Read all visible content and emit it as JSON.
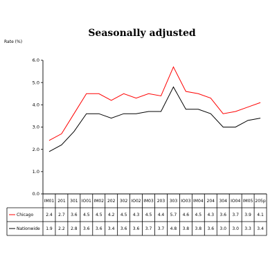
{
  "chart_data": {
    "type": "line",
    "title": "Seasonally adjusted",
    "ylabel": "Rate (%)",
    "xlabel": "",
    "ylim": [
      0.0,
      6.0
    ],
    "y_ticks": [
      "0.0",
      "1.0",
      "2.0",
      "3.0",
      "4.0",
      "5.0",
      "6.0"
    ],
    "grid": false,
    "legend": "table-below",
    "categories": [
      "IM01",
      "201",
      "301",
      "IO01",
      "IM02",
      "202",
      "302",
      "IO02",
      "IM03",
      "203",
      "303",
      "IO03",
      "IM04",
      "204",
      "304",
      "IO04",
      "IM05",
      "205p"
    ],
    "series": [
      {
        "name": "Chicago",
        "color": "#ff0000",
        "values": [
          2.4,
          2.7,
          3.6,
          4.5,
          4.5,
          4.2,
          4.5,
          4.3,
          4.5,
          4.4,
          5.7,
          4.6,
          4.5,
          4.3,
          3.6,
          3.7,
          3.9,
          4.1
        ],
        "labels": [
          "2.4",
          "2.7",
          "3.6",
          "4.5",
          "4.5",
          "4.2",
          "4.5",
          "4.3",
          "4.5",
          "4.4",
          "5.7",
          "4.6",
          "4.5",
          "4.3",
          "3.6",
          "3.7",
          "3.9",
          "4.1"
        ]
      },
      {
        "name": "Nationwide",
        "color": "#000000",
        "values": [
          1.9,
          2.2,
          2.8,
          3.6,
          3.6,
          3.4,
          3.6,
          3.6,
          3.7,
          3.7,
          4.8,
          3.8,
          3.8,
          3.6,
          3.0,
          3.0,
          3.3,
          3.4
        ],
        "labels": [
          "1.9",
          "2.2",
          "2.8",
          "3.6",
          "3.6",
          "3.4",
          "3.6",
          "3.6",
          "3.7",
          "3.7",
          "4.8",
          "3.8",
          "3.8",
          "3.6",
          "3.0",
          "3.0",
          "3.3",
          "3.4"
        ]
      }
    ]
  }
}
